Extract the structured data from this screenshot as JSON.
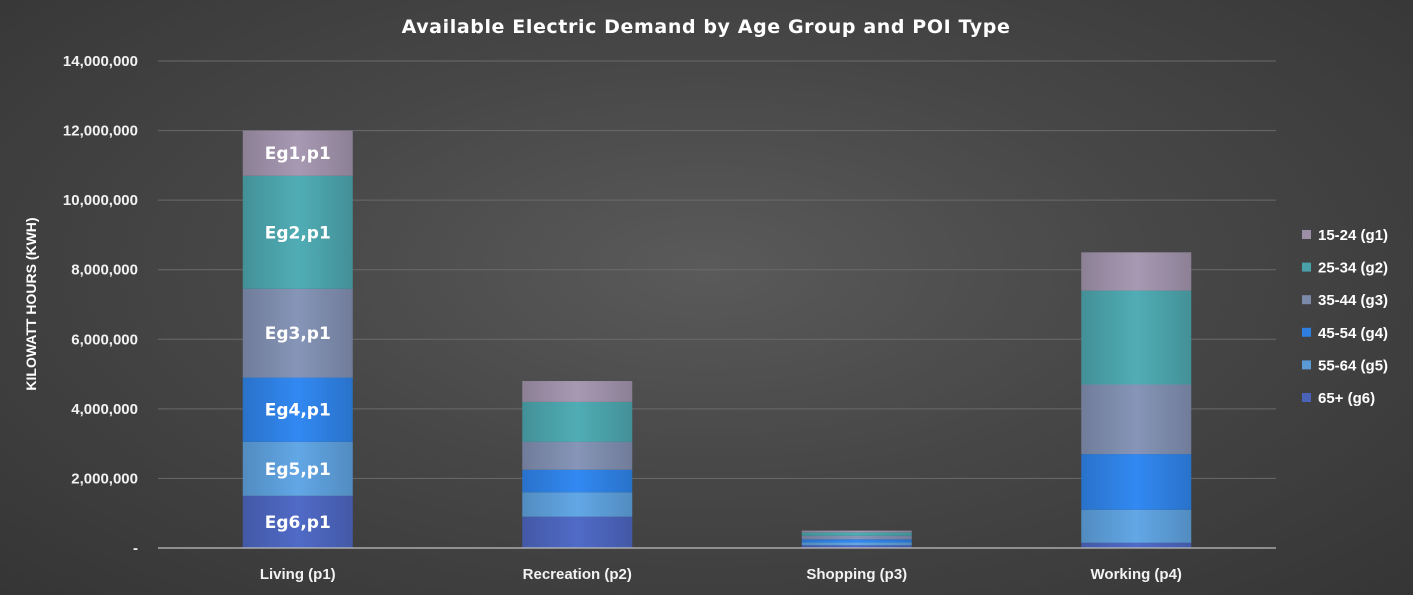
{
  "chart_data": {
    "type": "bar",
    "stacked": true,
    "title": "Available Electric Demand by Age Group and POI Type",
    "xlabel": "",
    "ylabel": "KILOWATT HOURS (KWH)",
    "ylim": [
      0,
      14000000
    ],
    "yticks": [
      {
        "value": 0,
        "label": "-"
      },
      {
        "value": 2000000,
        "label": "2,000,000"
      },
      {
        "value": 4000000,
        "label": "4,000,000"
      },
      {
        "value": 6000000,
        "label": "6,000,000"
      },
      {
        "value": 8000000,
        "label": "8,000,000"
      },
      {
        "value": 10000000,
        "label": "10,000,000"
      },
      {
        "value": 12000000,
        "label": "12,000,000"
      },
      {
        "value": 14000000,
        "label": "14,000,000"
      }
    ],
    "categories": [
      "Living (p1)",
      "Recreation (p2)",
      "Shopping (p3)",
      "Working (p4)"
    ],
    "grid": true,
    "legend_position": "right",
    "series": [
      {
        "name": "65+ (g6)",
        "color": "#4a63b8",
        "values": [
          1500000,
          900000,
          80000,
          150000
        ],
        "labels": [
          "Eg6,p1",
          "",
          "",
          ""
        ]
      },
      {
        "name": "55-64 (g5)",
        "color": "#5b9bd5",
        "values": [
          1550000,
          700000,
          80000,
          950000
        ],
        "labels": [
          "Eg5,p1",
          "",
          "",
          ""
        ]
      },
      {
        "name": "45-54 (g4)",
        "color": "#2e7fe0",
        "values": [
          1850000,
          650000,
          90000,
          1600000
        ],
        "labels": [
          "Eg4,p1",
          "",
          "",
          ""
        ]
      },
      {
        "name": "35-44 (g3)",
        "color": "#7c8aaa",
        "values": [
          2550000,
          800000,
          100000,
          2000000
        ],
        "labels": [
          "Eg3,p1",
          "",
          "",
          ""
        ]
      },
      {
        "name": "25-34 (g2)",
        "color": "#4aa0a8",
        "values": [
          3250000,
          1150000,
          100000,
          2700000
        ],
        "labels": [
          "Eg2,p1",
          "",
          "",
          ""
        ]
      },
      {
        "name": "15-24 (g1)",
        "color": "#9c8ea6",
        "values": [
          1300000,
          600000,
          50000,
          1100000
        ],
        "labels": [
          "Eg1,p1",
          "",
          "",
          ""
        ]
      }
    ]
  }
}
